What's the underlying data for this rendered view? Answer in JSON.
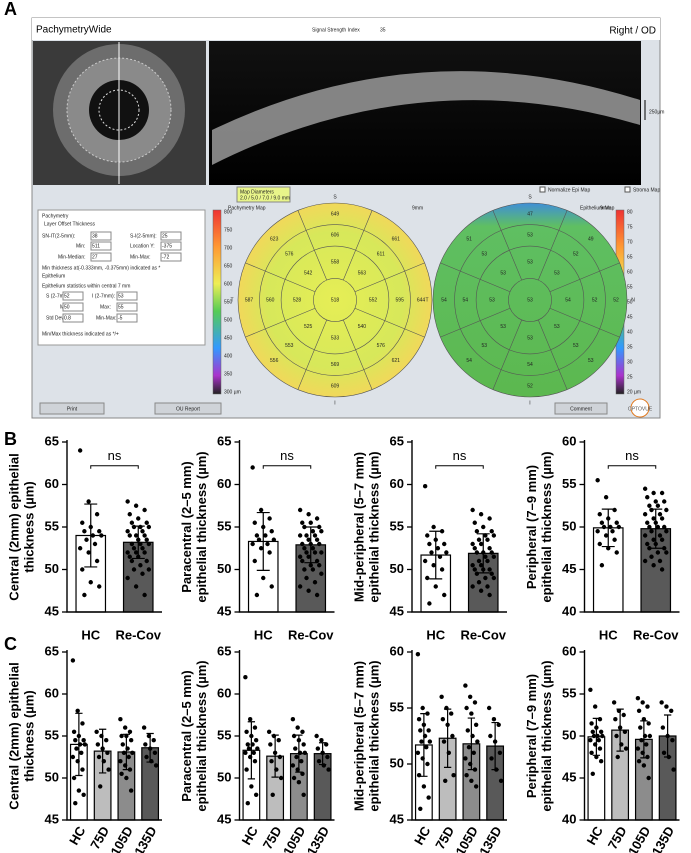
{
  "panel_labels": [
    "A",
    "B",
    "C"
  ],
  "panel_a": {
    "title": "PachymetryWide",
    "signal_label": "Signal Strength Index",
    "signal_value": "35",
    "eye": "Right / OD",
    "scale": "250µm",
    "map_diameters_label": "Map Diameters",
    "map_diameters": "2.0 / 5.0 / 7.0 / 9.0 mm",
    "normalize": "Normalize Epi Map",
    "stroma": "Stroma Map",
    "info": [
      "Pachymetry",
      "Layer  Offset  Thickness",
      "SN-IT(2-5mm):",
      "38",
      "S-I(2-5mm):",
      "25",
      "Min:",
      "511",
      "Location Y:",
      "-375",
      "Min-Median:",
      "27",
      "Min-Max:",
      "-72",
      "Min thickness at(-0.333mm, -0.375mm) indicated as *",
      "Epithelium",
      "Epithelium statistics within central 7 mm",
      "S (2-7mm):",
      "52",
      "I (2-7mm):",
      "53",
      "Min:",
      "50",
      "Max:",
      "55",
      "Std Dev:",
      "0.8",
      "Min-Max:",
      "-5",
      "Min/Max thickness indicated as */+"
    ],
    "maps": [
      {
        "title": "Pachymetry Map",
        "size": "9mm",
        "directions": [
          "S",
          "N",
          "I",
          "T"
        ],
        "values": [
          "518",
          "558",
          "563",
          "552",
          "540",
          "533",
          "525",
          "528",
          "542",
          "606",
          "611",
          "595",
          "576",
          "569",
          "553",
          "560",
          "576",
          "649",
          "661",
          "644",
          "621",
          "609",
          "556",
          "587",
          "623"
        ],
        "colorbar": [
          "800",
          "750",
          "700",
          "650",
          "600",
          "550",
          "500",
          "450",
          "400",
          "350",
          "300 µm"
        ]
      },
      {
        "title": "Epithelium Map",
        "size": "9mm",
        "directions": [
          "S",
          "N",
          "I",
          "T"
        ],
        "values": [
          "53",
          "53",
          "53",
          "54",
          "53",
          "53",
          "53",
          "53",
          "53",
          "53",
          "52",
          "52",
          "53",
          "54",
          "53",
          "54",
          "53",
          "47",
          "49",
          "52",
          "53",
          "52",
          "54",
          "54",
          "51"
        ],
        "colorbar": [
          "80",
          "75",
          "70",
          "65",
          "60",
          "55",
          "50",
          "45",
          "40",
          "35",
          "30",
          "25",
          "20 µm"
        ]
      }
    ],
    "buttons": [
      "Print",
      "OU Report",
      "Comment"
    ],
    "logo": "OPTOVUE"
  },
  "chart_data": [
    {
      "type": "bar",
      "ylabel": [
        "Central (2mm) epithelial",
        "thickness (µm)"
      ],
      "categories": [
        "HC",
        "Re-Cov"
      ],
      "values": [
        54,
        53.2
      ],
      "errors": [
        3.7,
        1.9
      ],
      "colors": [
        "#ffffff",
        "#595959"
      ],
      "points": [
        [
          64,
          58,
          56.5,
          55.5,
          55,
          54.5,
          54.5,
          54,
          54,
          53.5,
          53,
          52.5,
          52,
          51,
          50,
          48.5,
          48,
          47
        ],
        [
          58,
          57.5,
          57,
          56.5,
          56,
          55.5,
          55.5,
          55,
          55,
          55,
          54.5,
          54.5,
          54,
          54,
          54,
          53.5,
          53.5,
          53,
          53,
          53,
          52.5,
          52.5,
          52,
          52,
          52,
          51.5,
          51.5,
          51,
          51,
          50.5,
          50,
          50,
          49.5,
          49,
          48,
          47
        ]
      ],
      "ylim": [
        45,
        65
      ],
      "yticks": [
        45,
        50,
        55,
        60,
        65
      ],
      "annotation": "ns"
    },
    {
      "type": "bar",
      "ylabel": [
        "Paracentral (2–5 mm)",
        "epithelial thickness (µm)"
      ],
      "categories": [
        "HC",
        "Re-Cov"
      ],
      "values": [
        53.3,
        52.9
      ],
      "errors": [
        3.4,
        2.1
      ],
      "colors": [
        "#ffffff",
        "#595959"
      ],
      "points": [
        [
          62,
          57,
          56,
          55.5,
          55,
          54.5,
          54,
          54,
          53.5,
          53.5,
          53,
          53,
          52.5,
          52,
          51,
          49,
          48,
          47
        ],
        [
          57,
          56.5,
          56,
          55.5,
          55.5,
          55,
          55,
          54.5,
          54.5,
          54,
          54,
          54,
          53.5,
          53.5,
          53,
          53,
          53,
          52.5,
          52.5,
          52,
          52,
          52,
          51.5,
          51.5,
          51,
          51,
          50.5,
          50.5,
          50,
          50,
          49.5,
          49,
          48.5,
          48,
          47.5,
          47
        ]
      ],
      "ylim": [
        45,
        65
      ],
      "yticks": [
        45,
        50,
        55,
        60,
        65
      ],
      "annotation": "ns"
    },
    {
      "type": "bar",
      "ylabel": [
        "Mid-peripheral (5–7 mm)",
        "epithelial thickness (µm)"
      ],
      "categories": [
        "HC",
        "Re-Cov"
      ],
      "values": [
        51.7,
        51.9
      ],
      "errors": [
        2.8,
        2.3
      ],
      "colors": [
        "#ffffff",
        "#595959"
      ],
      "points": [
        [
          59.8,
          55,
          54.5,
          54,
          53.5,
          53,
          53,
          52.5,
          52,
          52,
          51.5,
          51,
          50.5,
          50,
          49,
          48,
          47,
          46
        ],
        [
          57,
          56.5,
          56,
          55.5,
          55,
          54.5,
          54.5,
          54,
          54,
          53.5,
          53.5,
          53,
          53,
          52.5,
          52.5,
          52,
          52,
          52,
          51.5,
          51.5,
          51,
          51,
          50.5,
          50.5,
          50,
          50,
          50,
          49.5,
          49.5,
          49,
          49,
          48.5,
          48,
          48,
          47.5,
          47
        ]
      ],
      "ylim": [
        45,
        65
      ],
      "yticks": [
        45,
        50,
        55,
        60,
        65
      ],
      "annotation": "ns"
    },
    {
      "type": "bar",
      "ylabel": [
        "Peripheral (7–9 mm)",
        "epithelial thickness (µm)"
      ],
      "categories": [
        "HC",
        "Re-Cov"
      ],
      "values": [
        49.9,
        49.8
      ],
      "errors": [
        2.2,
        2.3
      ],
      "colors": [
        "#ffffff",
        "#595959"
      ],
      "points": [
        [
          55.5,
          53.5,
          52,
          51.5,
          51,
          50.5,
          50.5,
          50,
          50,
          50,
          49.5,
          49.5,
          49,
          48.5,
          48,
          47.5,
          47,
          45.5
        ],
        [
          54.5,
          54,
          54,
          53.5,
          53,
          53,
          52.5,
          52.5,
          52,
          52,
          51.5,
          51.5,
          51,
          51,
          50.5,
          50.5,
          50,
          50,
          50,
          49.5,
          49.5,
          49,
          49,
          48.5,
          48.5,
          48,
          48,
          47.5,
          47.5,
          47,
          47,
          46.5,
          46,
          46,
          45.5,
          45
        ]
      ],
      "ylim": [
        40,
        60
      ],
      "yticks": [
        40,
        45,
        50,
        55,
        60
      ],
      "annotation": "ns"
    },
    {
      "type": "bar",
      "ylabel": [
        "Central (2mm) epithelial",
        "thickness (µm)"
      ],
      "categories": [
        "HC",
        "75D",
        "105D",
        "135D"
      ],
      "values": [
        54,
        53.2,
        53.1,
        53.6
      ],
      "errors": [
        3.7,
        2.6,
        2.1,
        1.7
      ],
      "colors": [
        "#ffffff",
        "#bdbdbd",
        "#8c8c8c",
        "#595959"
      ],
      "points": [
        [
          64,
          58,
          56.5,
          55.5,
          55,
          54.5,
          54.5,
          54,
          54,
          53.5,
          53,
          52.5,
          52,
          51,
          50,
          48.5,
          48,
          47
        ],
        [
          55.5,
          55,
          54.5,
          54,
          53.5,
          53,
          52.5,
          52,
          51,
          49
        ],
        [
          57,
          56,
          55.5,
          55,
          55,
          54.5,
          54,
          53.5,
          53,
          53,
          52.5,
          52,
          51.5,
          51,
          50.5,
          50,
          48.5
        ],
        [
          56,
          55,
          54.5,
          54,
          53.5,
          53,
          52.5,
          52,
          51.5
        ]
      ],
      "ylim": [
        45,
        65
      ],
      "yticks": [
        45,
        50,
        55,
        60,
        65
      ]
    },
    {
      "type": "bar",
      "ylabel": [
        "Paracentral (2–5 mm)",
        "epithelial thickness (µm)"
      ],
      "categories": [
        "HC",
        "75D",
        "105D",
        "135D"
      ],
      "values": [
        53.3,
        52.6,
        52.9,
        52.9
      ],
      "errors": [
        3.4,
        2.5,
        2.2,
        1.3
      ],
      "colors": [
        "#ffffff",
        "#bdbdbd",
        "#8c8c8c",
        "#595959"
      ],
      "points": [
        [
          62,
          57,
          56,
          55.5,
          55,
          54.5,
          54,
          54,
          53.5,
          53.5,
          53,
          53,
          52.5,
          52,
          51,
          49,
          48,
          47
        ],
        [
          55.5,
          55,
          54.5,
          54,
          53,
          52.5,
          52,
          51,
          50,
          48
        ],
        [
          57,
          56,
          55.5,
          55,
          54.5,
          54,
          53.5,
          53,
          53,
          52.5,
          52,
          51.5,
          51,
          50.5,
          50,
          49.5,
          48
        ],
        [
          55,
          54.5,
          54,
          53.5,
          53,
          52.5,
          52,
          51.5,
          51
        ]
      ],
      "ylim": [
        45,
        65
      ],
      "yticks": [
        45,
        50,
        55,
        60,
        65
      ]
    },
    {
      "type": "bar",
      "ylabel": [
        "Mid-peripheral (5–7 mm)",
        "epithelial thickness (µm)"
      ],
      "categories": [
        "HC",
        "75D",
        "105D",
        "135D"
      ],
      "values": [
        51.7,
        52.3,
        51.8,
        51.6
      ],
      "errors": [
        2.8,
        2.6,
        2.3,
        2.1
      ],
      "colors": [
        "#ffffff",
        "#bdbdbd",
        "#8c8c8c",
        "#595959"
      ],
      "points": [
        [
          59.8,
          55,
          54.5,
          54,
          53.5,
          53,
          53,
          52.5,
          52,
          52,
          51.5,
          51,
          50.5,
          50,
          49,
          48,
          47,
          46
        ],
        [
          56,
          55,
          54.5,
          54,
          53.5,
          52.5,
          52,
          51,
          49,
          48.5
        ],
        [
          57,
          56,
          55.5,
          55,
          54.5,
          53.5,
          53,
          52.5,
          52,
          51.5,
          51,
          50.5,
          50,
          49.5,
          49,
          48.5,
          48
        ],
        [
          55,
          54,
          53.5,
          52.5,
          52,
          51,
          50.5,
          49.5,
          48.5
        ]
      ],
      "ylim": [
        45,
        60
      ],
      "yticks": [
        45,
        50,
        55,
        60
      ]
    },
    {
      "type": "bar",
      "ylabel": [
        "Peripheral (7–9 mm)",
        "epithelial thickness (µm)"
      ],
      "categories": [
        "HC",
        "75D",
        "105D",
        "135D"
      ],
      "values": [
        49.9,
        50.7,
        49.6,
        50
      ],
      "errors": [
        2.2,
        2.5,
        2.2,
        2.5
      ],
      "colors": [
        "#ffffff",
        "#bdbdbd",
        "#8c8c8c",
        "#595959"
      ],
      "points": [
        [
          55.5,
          53.5,
          52,
          51.5,
          51,
          50.5,
          50.5,
          50,
          50,
          50,
          49.5,
          49.5,
          49,
          48.5,
          48,
          47.5,
          47,
          45.5
        ],
        [
          54,
          53,
          52.5,
          52,
          51,
          50.5,
          50,
          49,
          48.5,
          47.5
        ],
        [
          54.5,
          54,
          53.5,
          53,
          52,
          51.5,
          51,
          50,
          50,
          49.5,
          49,
          48.5,
          48,
          47.5,
          47,
          46.5,
          45
        ],
        [
          54,
          53.5,
          53,
          51,
          50,
          49.5,
          48,
          47.5,
          46
        ]
      ],
      "ylim": [
        40,
        60
      ],
      "yticks": [
        40,
        45,
        50,
        55,
        60
      ]
    }
  ]
}
